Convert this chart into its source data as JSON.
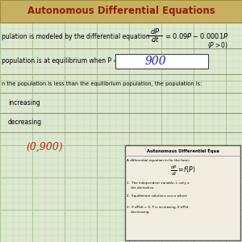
{
  "title": "Autonomous Differential Equations",
  "bg_color": "#dce8d0",
  "grid_color_major": "#b0c8a0",
  "grid_color_minor": "#c8dab8",
  "title_color": "#8b2000",
  "title_bg": "#c8b060",
  "title_border": "#a09040",
  "line1_text": "pulation is modeled by the differential equation",
  "line2_text": "population is at equilibrium when P =",
  "answer_900": "900",
  "line3_text": "n the population is less than the equilibrium population, the population is:",
  "bullet1": "increasing",
  "bullet2": "decreasing",
  "annotation": "(0,900)",
  "box_bg": "#f0ede0",
  "box_border": "#555555",
  "box_title": "Autonomous Differential Equa",
  "box_line1": "A differential equation in for the form:",
  "box_eq": "$\\frac{dP}{dt} = f(P)$",
  "box_item1a": "1.  The independent variable, t, only a",
  "box_item1b": "    the derivative.",
  "box_item2": "2.  Equilibrium solutions occur where",
  "box_item3a": "3.  If dP/dt > 0, P is increasing. If dP/d",
  "box_item3b": "    decreasing."
}
